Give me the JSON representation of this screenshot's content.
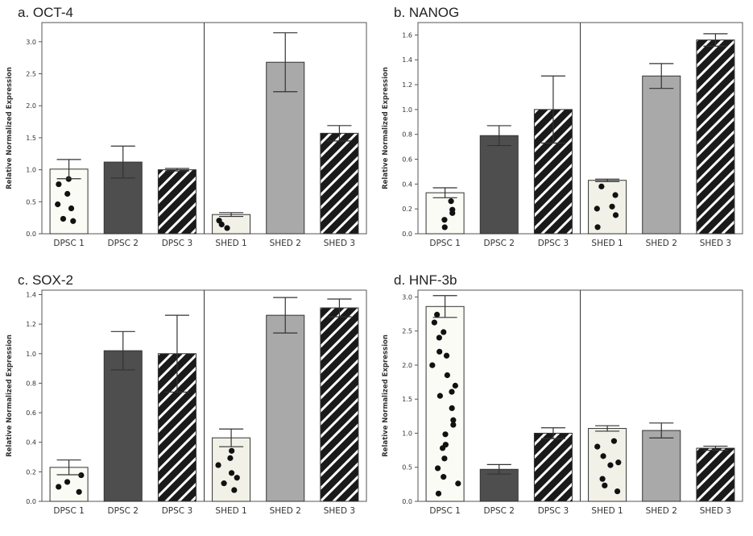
{
  "chart_data": [
    {
      "type": "bar",
      "title": "a. OCT-4",
      "ylabel": "Relative Normalized Expression",
      "xlabel": "",
      "categories": [
        "DPSC 1",
        "DPSC 2",
        "DPSC 3",
        "SHED 1",
        "SHED 2",
        "SHED 3"
      ],
      "values": [
        1.01,
        1.12,
        1.0,
        0.3,
        2.68,
        1.57
      ],
      "errors": [
        0.15,
        0.25,
        0.02,
        0.03,
        0.46,
        0.12
      ],
      "ylim": [
        0,
        3.3
      ],
      "yticks": [
        "0.0",
        "0.5",
        "1.0",
        "1.5",
        "2.0",
        "2.5",
        "3.0"
      ],
      "divider_after": 3
    },
    {
      "type": "bar",
      "title": "b. NANOG",
      "ylabel": "Relative Normalized Expression",
      "xlabel": "",
      "categories": [
        "DPSC 1",
        "DPSC 2",
        "DPSC 3",
        "SHED 1",
        "SHED 2",
        "SHED 3"
      ],
      "values": [
        0.33,
        0.79,
        1.0,
        0.43,
        1.27,
        1.56
      ],
      "errors": [
        0.04,
        0.08,
        0.27,
        0.01,
        0.1,
        0.05
      ],
      "ylim": [
        0,
        1.7
      ],
      "yticks": [
        "0.0",
        "0.2",
        "0.4",
        "0.6",
        "0.8",
        "1.0",
        "1.2",
        "1.4",
        "1.6"
      ],
      "divider_after": 3
    },
    {
      "type": "bar",
      "title": "c. SOX-2",
      "ylabel": "Relative Normalized Expression",
      "xlabel": "",
      "categories": [
        "DPSC 1",
        "DPSC 2",
        "DPSC 3",
        "SHED 1",
        "SHED 2",
        "SHED 3"
      ],
      "values": [
        0.23,
        1.02,
        1.0,
        0.43,
        1.26,
        1.31
      ],
      "errors": [
        0.05,
        0.13,
        0.26,
        0.06,
        0.12,
        0.06
      ],
      "ylim": [
        0,
        1.43
      ],
      "yticks": [
        "0.0",
        "0.2",
        "0.4",
        "0.6",
        "0.8",
        "1.0",
        "1.2",
        "1.4"
      ],
      "divider_after": 3
    },
    {
      "type": "bar",
      "title": "d. HNF-3b",
      "ylabel": "Relative Normalized Expression",
      "xlabel": "",
      "categories": [
        "DPSC 1",
        "DPSC 2",
        "DPSC 3",
        "SHED 1",
        "SHED 2",
        "SHED 3"
      ],
      "values": [
        2.86,
        0.47,
        1.0,
        1.07,
        1.04,
        0.78
      ],
      "errors": [
        0.16,
        0.07,
        0.08,
        0.04,
        0.11,
        0.03
      ],
      "ylim": [
        0,
        3.1
      ],
      "yticks": [
        "0.0",
        "0.5",
        "1.0",
        "1.5",
        "2.0",
        "2.5",
        "3.0"
      ],
      "divider_after": 3
    }
  ],
  "colors": {
    "dpsc1": "#fbfbf6",
    "dpsc2": "#4e4e4e",
    "dpsc3": "#1a1a1a",
    "shed1": "#f1f1e8",
    "shed2": "#a9a9a9",
    "shed3": "#1a1a1a",
    "dots": "#111111",
    "axis": "#555555"
  },
  "patterns": [
    "dots",
    "solid-dark",
    "hatch",
    "dots",
    "solid-light",
    "hatch"
  ]
}
